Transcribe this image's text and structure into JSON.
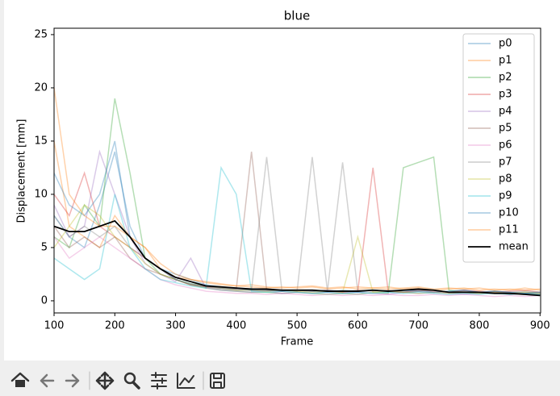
{
  "chart_data": {
    "type": "line",
    "title": "blue",
    "x_label": "Frame",
    "y_label": "Displacement [mm]",
    "x": [
      100,
      125,
      150,
      175,
      200,
      225,
      250,
      275,
      300,
      325,
      350,
      375,
      400,
      425,
      450,
      475,
      500,
      525,
      550,
      575,
      600,
      625,
      650,
      675,
      700,
      725,
      750,
      775,
      800,
      825,
      850,
      875,
      900
    ],
    "xlim": [
      100,
      901
    ],
    "ylim": [
      -1.14,
      25.6
    ],
    "xticks": [
      100,
      200,
      300,
      400,
      500,
      600,
      700,
      800,
      900
    ],
    "yticks": [
      0,
      5,
      10,
      15,
      20,
      25
    ],
    "legend": "upper right",
    "series": [
      {
        "name": "p0",
        "color": "#1f77b4",
        "alpha": 0.35,
        "values": [
          8,
          6,
          5,
          9,
          14,
          7,
          4,
          3,
          2.5,
          2,
          1.5,
          1.3,
          1.2,
          1,
          1,
          0.9,
          1,
          0.9,
          0.8,
          1,
          0.9,
          1,
          0.8,
          0.9,
          1,
          0.8,
          0.9,
          1,
          0.8,
          0.9,
          0.8,
          0.7,
          0.8
        ]
      },
      {
        "name": "p1",
        "color": "#ff7f0e",
        "alpha": 0.35,
        "values": [
          15,
          7,
          6,
          5,
          8,
          6,
          5,
          3,
          2.2,
          2,
          1.8,
          1.6,
          1.4,
          1.5,
          1.3,
          1.2,
          1.3,
          1.4,
          1.2,
          1.3,
          1.1,
          1.2,
          1.3,
          1.1,
          1.2,
          1,
          1.1,
          1.2,
          1,
          1.1,
          1,
          1.2,
          1
        ]
      },
      {
        "name": "p2",
        "color": "#2ca02c",
        "alpha": 0.35,
        "values": [
          6,
          5,
          9,
          7,
          19,
          12,
          4,
          2.5,
          2,
          1.5,
          1.2,
          1,
          0.9,
          0.8,
          0.8,
          0.7,
          0.8,
          0.7,
          0.6,
          0.7,
          0.6,
          0.8,
          0.7,
          12.5,
          13,
          13.5,
          1,
          0.8,
          0.7,
          0.8,
          0.6,
          0.7,
          0.6
        ]
      },
      {
        "name": "p3",
        "color": "#d62728",
        "alpha": 0.35,
        "values": [
          10,
          8,
          12,
          7,
          6,
          5,
          4,
          3,
          2,
          1.5,
          1.3,
          1.2,
          1.1,
          1,
          1,
          0.9,
          1,
          0.9,
          1,
          0.8,
          0.9,
          12.5,
          0.9,
          0.8,
          1,
          0.9,
          0.8,
          1,
          0.9,
          0.8,
          0.9,
          1,
          0.8
        ]
      },
      {
        "name": "p4",
        "color": "#9467bd",
        "alpha": 0.35,
        "values": [
          9,
          6,
          7,
          14,
          10,
          6,
          3.5,
          2.5,
          1.8,
          4,
          1.2,
          1,
          0.9,
          0.8,
          0.9,
          0.7,
          0.8,
          0.7,
          0.8,
          0.7,
          0.8,
          0.7,
          0.6,
          0.8,
          0.7,
          0.8,
          0.7,
          0.6,
          0.7,
          0.8,
          0.6,
          0.7,
          0.6
        ]
      },
      {
        "name": "p5",
        "color": "#8c564b",
        "alpha": 0.35,
        "values": [
          7,
          5,
          6,
          5,
          6,
          4,
          3,
          2.5,
          2,
          1.5,
          1.3,
          1.2,
          1.1,
          14,
          1,
          1,
          0.9,
          1,
          0.9,
          0.8,
          1,
          0.9,
          1,
          0.8,
          0.9,
          1,
          0.8,
          0.9,
          0.8,
          0.9,
          0.7,
          0.8,
          0.7
        ]
      },
      {
        "name": "p6",
        "color": "#e377c2",
        "alpha": 0.35,
        "values": [
          6,
          4,
          5,
          6,
          5,
          4,
          3,
          2,
          1.5,
          1.2,
          0.9,
          0.8,
          0.7,
          0.7,
          0.6,
          0.7,
          0.6,
          0.5,
          0.6,
          0.5,
          0.6,
          0.5,
          0.6,
          0.5,
          0.5,
          0.6,
          0.5,
          0.6,
          0.5,
          0.4,
          0.5,
          0.4,
          0.5
        ]
      },
      {
        "name": "p7",
        "color": "#7f7f7f",
        "alpha": 0.35,
        "values": [
          8,
          6,
          7,
          6,
          7,
          5,
          4,
          3,
          2,
          1.6,
          1.3,
          1.1,
          1,
          1,
          13.5,
          1,
          0.9,
          13.5,
          0.9,
          13,
          0.9,
          1,
          0.9,
          0.8,
          0.9,
          1,
          0.8,
          0.9,
          0.8,
          0.9,
          0.8,
          0.9,
          0.8
        ]
      },
      {
        "name": "p8",
        "color": "#bcbd22",
        "alpha": 0.35,
        "values": [
          5,
          7,
          9,
          8,
          6,
          5,
          3.5,
          2.5,
          2,
          1.6,
          1.4,
          1.2,
          1,
          1,
          0.9,
          1,
          0.9,
          0.8,
          0.9,
          0.8,
          6,
          0.8,
          0.9,
          0.8,
          0.7,
          0.8,
          0.7,
          0.8,
          0.7,
          0.8,
          0.7,
          0.8,
          0.7
        ]
      },
      {
        "name": "p9",
        "color": "#17becf",
        "alpha": 0.35,
        "values": [
          4,
          3,
          2,
          3,
          10,
          5,
          3,
          2,
          1.7,
          1.4,
          1.2,
          12.5,
          10,
          0.9,
          0.8,
          0.9,
          0.8,
          0.7,
          0.8,
          0.7,
          0.8,
          0.7,
          0.8,
          0.7,
          0.8,
          0.7,
          0.6,
          0.7,
          0.6,
          0.7,
          0.6,
          0.7,
          0.6
        ]
      },
      {
        "name": "p10",
        "color": "#1f77b4",
        "alpha": 0.35,
        "values": [
          12,
          9,
          8,
          10,
          15,
          6,
          4,
          3,
          2,
          1.6,
          1.4,
          1.2,
          1.1,
          1,
          1,
          0.9,
          1,
          0.9,
          1,
          0.9,
          0.8,
          1,
          0.9,
          1,
          0.9,
          0.8,
          0.9,
          1,
          0.8,
          0.9,
          0.8,
          0.7,
          0.8
        ]
      },
      {
        "name": "p11",
        "color": "#ff7f0e",
        "alpha": 0.35,
        "values": [
          20,
          10,
          8,
          7,
          7,
          6,
          5,
          3.5,
          2.5,
          2,
          1.7,
          1.5,
          1.4,
          1.3,
          1.2,
          1.3,
          1.2,
          1.3,
          1.1,
          1.2,
          1.3,
          1.2,
          1.1,
          1.2,
          1.3,
          1.1,
          1.2,
          1.1,
          1.2,
          1,
          1.1,
          1,
          1.1
        ]
      },
      {
        "name": "mean",
        "color": "#000000",
        "alpha": 1,
        "values": [
          7,
          6.5,
          6.5,
          7,
          7.5,
          6,
          4,
          3,
          2.2,
          1.8,
          1.4,
          1.3,
          1.2,
          1.1,
          1.1,
          1,
          1,
          1,
          0.9,
          0.9,
          0.9,
          1,
          0.9,
          1,
          1.1,
          1,
          0.8,
          0.8,
          0.8,
          0.7,
          0.7,
          0.6,
          0.5
        ]
      }
    ]
  }
}
